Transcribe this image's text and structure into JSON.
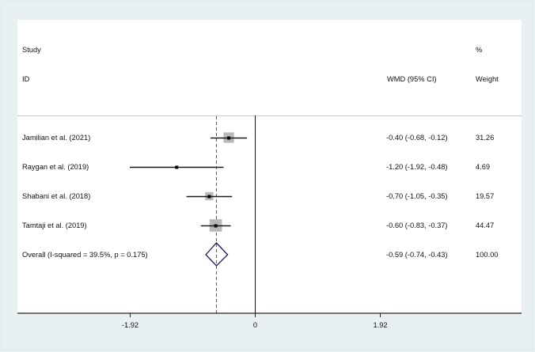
{
  "header": {
    "col_study_line1": "Study",
    "col_study_line2": "ID",
    "col_effect": "WMD (95% CI)",
    "col_weight_line1": "%",
    "col_weight_line2": "Weight"
  },
  "rows": [
    {
      "study": "Jamilian et al. (2021)",
      "effect_text": "-0.40 (-0.68, -0.12)",
      "weight": "31.26"
    },
    {
      "study": "Raygan et al. (2019)",
      "effect_text": "-1.20 (-1.92, -0.48)",
      "weight": "4.69"
    },
    {
      "study": "Shabani et al. (2018)",
      "effect_text": "-0.70 (-1.05, -0.35)",
      "weight": "19.57"
    },
    {
      "study": "Tamtaji et al. (2019)",
      "effect_text": "-0.60 (-0.83, -0.37)",
      "weight": "44.47"
    },
    {
      "study": "Overall  (I-squared = 39.5%, p = 0.175)",
      "effect_text": "-0.59 (-0.74, -0.43)",
      "weight": "100.00"
    }
  ],
  "axis": {
    "ticks": [
      {
        "value": -1.92,
        "label": "-1.92"
      },
      {
        "value": 0,
        "label": "0"
      },
      {
        "value": 1.92,
        "label": "1.92"
      }
    ]
  },
  "colors": {
    "background": "#e9f0f2",
    "panel": "#ffffff",
    "ci_line": "#1a1a1a",
    "weight_square": "#b9b9b9",
    "pooled_line": "#8b3a4a",
    "diamond": "#1c1a5c",
    "separator": "#c8c8c8"
  },
  "chart_data": {
    "type": "forest",
    "title": "",
    "xlabel": "",
    "ylabel": "",
    "effect_measure": "WMD (95% CI)",
    "xlim": [
      -3.0,
      3.0
    ],
    "x_ticks": [
      -1.92,
      0,
      1.92
    ],
    "null_line": 0,
    "pooled_line": -0.59,
    "categories": [
      "Jamilian et al. (2021)",
      "Raygan et al. (2019)",
      "Shabani et al. (2018)",
      "Tamtaji et al. (2019)",
      "Overall"
    ],
    "series": [
      {
        "name": "estimate",
        "values": [
          -0.4,
          -1.2,
          -0.7,
          -0.6,
          -0.59
        ]
      },
      {
        "name": "ci_lower",
        "values": [
          -0.68,
          -1.92,
          -1.05,
          -0.83,
          -0.74
        ]
      },
      {
        "name": "ci_upper",
        "values": [
          -0.12,
          -0.48,
          -0.35,
          -0.37,
          -0.43
        ]
      },
      {
        "name": "weight_percent",
        "values": [
          31.26,
          4.69,
          19.57,
          44.47,
          100.0
        ]
      }
    ],
    "heterogeneity": {
      "i_squared": "39.5%",
      "p": 0.175
    }
  }
}
